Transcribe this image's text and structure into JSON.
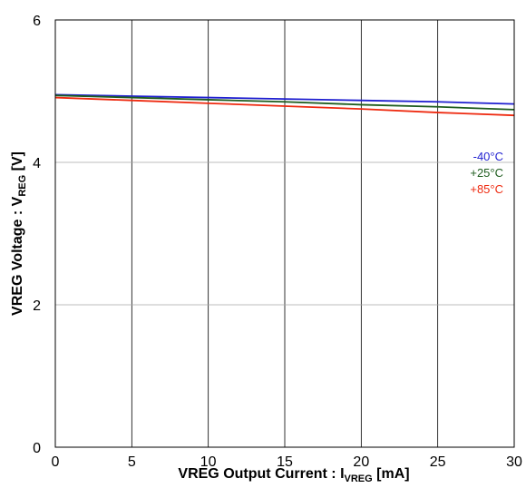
{
  "chart_data": {
    "type": "line",
    "title": "",
    "xlabel": {
      "main": "VREG Output Current : I",
      "sub": "VREG",
      "suffix": " [mA]"
    },
    "ylabel": {
      "main": "VREG Voltage : V",
      "sub": "REG",
      "suffix": " [V]"
    },
    "xlim": [
      0,
      30
    ],
    "ylim": [
      0,
      6
    ],
    "xticks": [
      "0",
      "5",
      "10",
      "15",
      "20",
      "25",
      "30"
    ],
    "yticks": [
      "0",
      "2",
      "4",
      "6"
    ],
    "grid": true,
    "legend_position": "right",
    "series": [
      {
        "name": "-40°C",
        "color": "#1f1fd0",
        "x": [
          0,
          5,
          10,
          15,
          20,
          25,
          30
        ],
        "y": [
          4.95,
          4.93,
          4.91,
          4.89,
          4.87,
          4.85,
          4.82
        ]
      },
      {
        "name": "+25°C",
        "color": "#1e5c1e",
        "x": [
          0,
          5,
          10,
          15,
          20,
          25,
          30
        ],
        "y": [
          4.94,
          4.91,
          4.88,
          4.85,
          4.81,
          4.78,
          4.74
        ]
      },
      {
        "name": "+85°C",
        "color": "#ee2a10",
        "x": [
          0,
          5,
          10,
          15,
          20,
          25,
          30
        ],
        "y": [
          4.91,
          4.87,
          4.83,
          4.79,
          4.75,
          4.7,
          4.66
        ]
      }
    ]
  }
}
